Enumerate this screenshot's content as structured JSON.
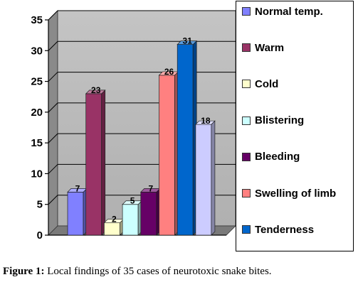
{
  "chart_data": {
    "type": "bar",
    "title": "",
    "xlabel": "",
    "ylabel": "",
    "ylim": [
      0,
      35
    ],
    "yticks": [
      0,
      5,
      10,
      15,
      20,
      25,
      30,
      35
    ],
    "grid": true,
    "legend_position": "right",
    "series": [
      {
        "name": "Normal temp.",
        "value": 7,
        "label": "7",
        "color": "#8080ff"
      },
      {
        "name": "Warm",
        "value": 23,
        "label": "23",
        "color": "#993366"
      },
      {
        "name": "Cold",
        "value": 2,
        "label": "2",
        "color": "#ffffcc"
      },
      {
        "name": "Blistering",
        "value": 5,
        "label": "5",
        "color": "#ccffff"
      },
      {
        "name": "Bleeding",
        "value": 7,
        "label": "7",
        "color": "#660066"
      },
      {
        "name": "Swelling of limb",
        "value": 26,
        "label": "26",
        "color": "#ff8080"
      },
      {
        "name": "Tenderness",
        "value": 31,
        "label": "31",
        "color": "#0066cc"
      },
      {
        "name": "",
        "value": 18,
        "label": "18",
        "color": "#ccccff"
      }
    ]
  },
  "caption": {
    "prefix": "Figure 1:",
    "text": " Local findings of 35 cases of neurotoxic snake bites."
  }
}
